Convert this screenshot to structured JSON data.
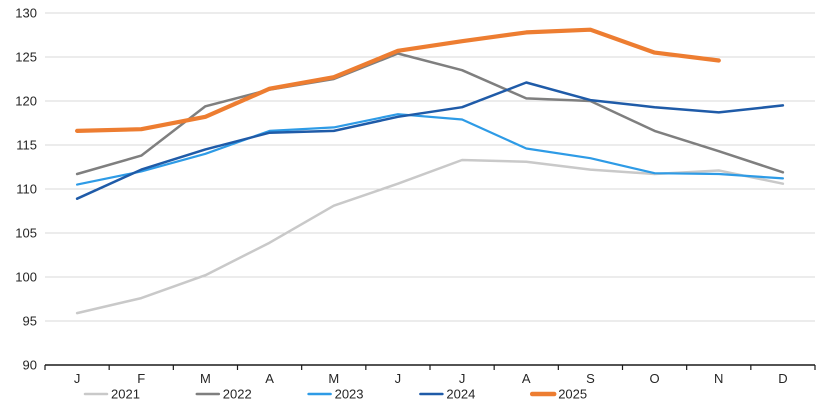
{
  "chart_data": {
    "type": "line",
    "title": "",
    "xlabel": "",
    "ylabel": "",
    "ylim": [
      90,
      130
    ],
    "y_ticks": [
      90,
      95,
      100,
      105,
      110,
      115,
      120,
      125,
      130
    ],
    "grid": "horizontal",
    "legend_position": "bottom",
    "categories": [
      "J",
      "F",
      "M",
      "A",
      "M",
      "J",
      "J",
      "A",
      "S",
      "O",
      "N",
      "D"
    ],
    "series": [
      {
        "name": "2021",
        "color": "#c9c9c9",
        "stroke_width": 2.5,
        "values": [
          95.9,
          97.6,
          100.2,
          103.9,
          108.1,
          110.6,
          113.3,
          113.1,
          112.2,
          111.7,
          112.1,
          110.6
        ]
      },
      {
        "name": "2022",
        "color": "#7f7f7f",
        "stroke_width": 2.5,
        "values": [
          111.7,
          113.8,
          119.4,
          121.3,
          122.5,
          125.4,
          123.5,
          120.3,
          120.0,
          116.6,
          114.3,
          111.9
        ]
      },
      {
        "name": "2023",
        "color": "#2e9be6",
        "stroke_width": 2.2,
        "values": [
          110.5,
          112.0,
          114.0,
          116.6,
          117.0,
          118.5,
          117.9,
          114.6,
          113.5,
          111.8,
          111.7,
          111.2
        ]
      },
      {
        "name": "2024",
        "color": "#1f5ba8",
        "stroke_width": 2.5,
        "values": [
          108.9,
          112.2,
          114.5,
          116.4,
          116.6,
          118.2,
          119.3,
          122.1,
          120.1,
          119.3,
          118.7,
          119.5
        ]
      },
      {
        "name": "2025",
        "color": "#ed7d31",
        "stroke_width": 4.2,
        "values": [
          116.6,
          116.8,
          118.2,
          121.4,
          122.7,
          125.7,
          126.8,
          127.8,
          128.1,
          125.5,
          124.6,
          null
        ]
      }
    ],
    "colors": {
      "gridline": "#d9d9d9",
      "axis_line": "#1a1a1a",
      "text": "#262626",
      "background": "#ffffff"
    }
  }
}
